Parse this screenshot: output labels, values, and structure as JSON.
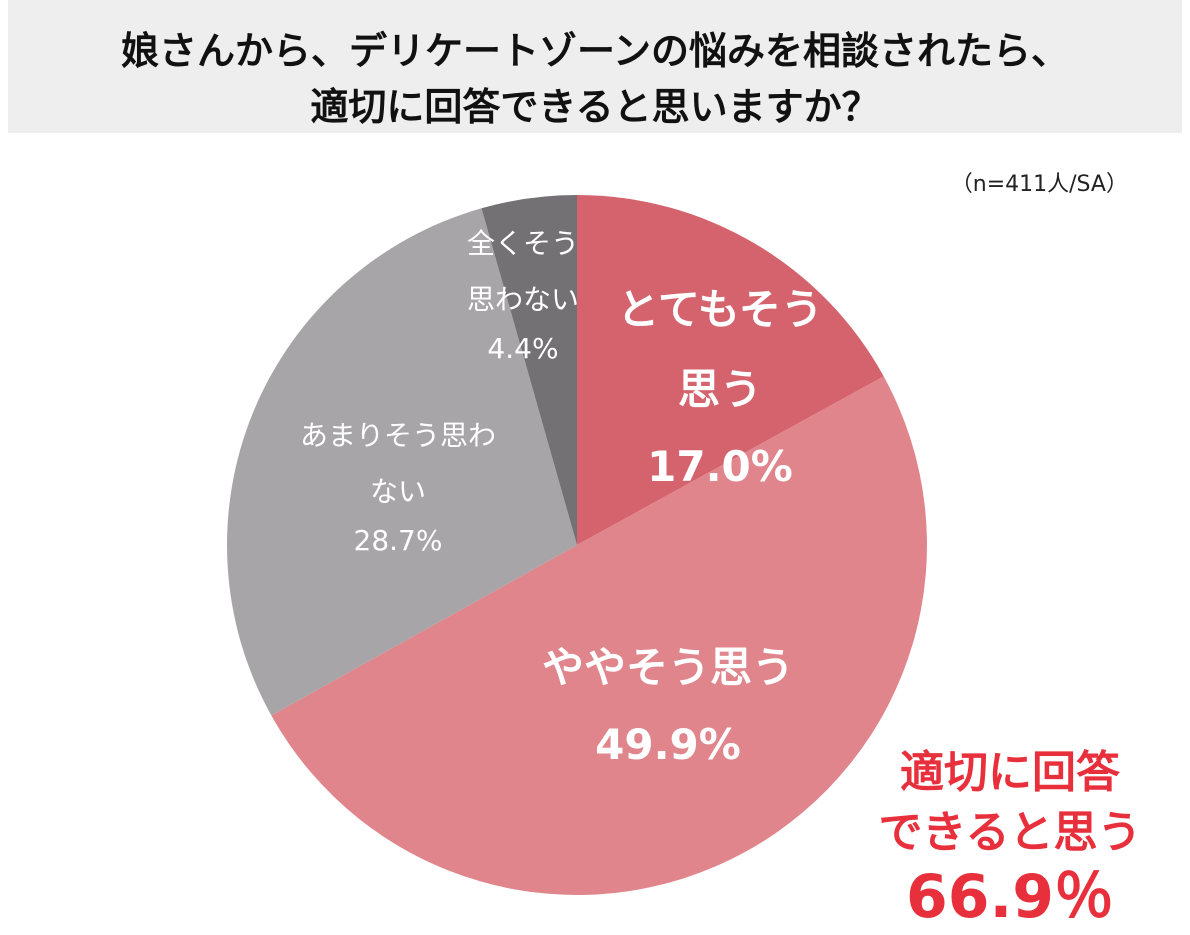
{
  "chart_data": {
    "type": "pie",
    "title": [
      "娘さんから、デリケートゾーンの悩みを相談されたら、",
      "適切に回答できると思いますか？"
    ],
    "subtitle": "（n=411人/SA）",
    "categories": [
      "とてもそう思う",
      "ややそう思う",
      "あまりそう思わない",
      "全くそう思わない"
    ],
    "values": [
      17.0,
      49.9,
      28.7,
      4.4
    ],
    "value_labels": [
      "17.0%",
      "49.9%",
      "28.7%",
      "4.4%"
    ],
    "colors": [
      "#d4636e",
      "#e0858c",
      "#a7a5a8",
      "#737173"
    ],
    "annotation": [
      "適切に回答",
      "できると思う",
      "66.9％"
    ]
  }
}
